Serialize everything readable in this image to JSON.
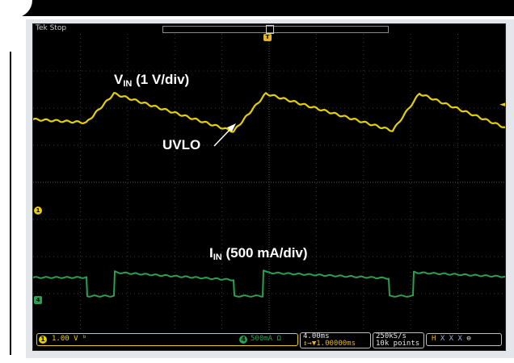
{
  "scope": {
    "brand": "Tek",
    "run_state": "Stop",
    "trigger_marker": "T",
    "trigger_level_marker": "◄",
    "ch1_marker": "1",
    "ch4_marker": "4"
  },
  "labels": {
    "vin_main": "V",
    "vin_sub": "IN",
    "vin_scale": " (1 V/div)",
    "iin_main": "I",
    "iin_sub": "IN",
    "iin_scale": " (500 mA/div)",
    "uvlo": "UVLO"
  },
  "status_bar": {
    "ch1_number": "1",
    "ch1_scale": "1.00 V",
    "ch1_bw": "ᵇ",
    "ch4_number": "4",
    "ch4_scale": "500mA Ω",
    "timebase": "4.00ms",
    "trigger_delay": "↕→▼1.00000ms",
    "sample_rate": "250kS/s",
    "record_length": "10k points",
    "h_text": "H",
    "x_text": " X X X ",
    "trigger_icon": "⊖"
  },
  "colors": {
    "ch1": "#e4d000",
    "ch4": "#2aa050",
    "trigger": "#e4b42a",
    "screen_bg": "#000000"
  }
}
